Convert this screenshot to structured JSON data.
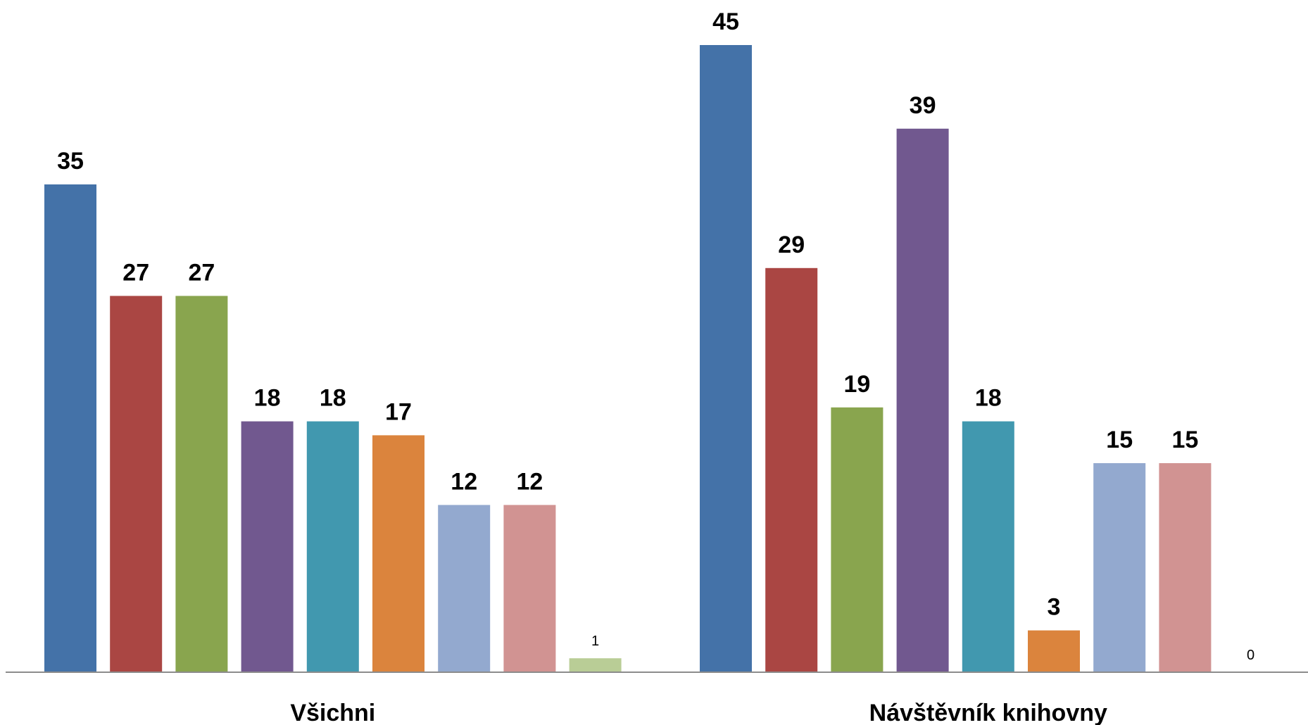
{
  "chart_data": {
    "type": "bar",
    "categories": [
      "Všichni",
      "Návštěvník knihovny"
    ],
    "series": [
      {
        "values": [
          35,
          45
        ],
        "color": "#4472A8"
      },
      {
        "values": [
          27,
          29
        ],
        "color": "#AA4643"
      },
      {
        "values": [
          27,
          19
        ],
        "color": "#89A54E"
      },
      {
        "values": [
          18,
          39
        ],
        "color": "#71588F"
      },
      {
        "values": [
          18,
          18
        ],
        "color": "#4198AF"
      },
      {
        "values": [
          17,
          3
        ],
        "color": "#DB843D"
      },
      {
        "values": [
          12,
          15
        ],
        "color": "#93A9CF"
      },
      {
        "values": [
          12,
          15
        ],
        "color": "#D19392"
      },
      {
        "values": [
          1,
          0
        ],
        "color": "#B9CD96"
      }
    ],
    "small_value_labels": [
      [
        1,
        0
      ]
    ],
    "xlabel": "",
    "ylabel": "",
    "ylim": [
      0,
      46
    ],
    "grid": false,
    "legend": "none"
  }
}
